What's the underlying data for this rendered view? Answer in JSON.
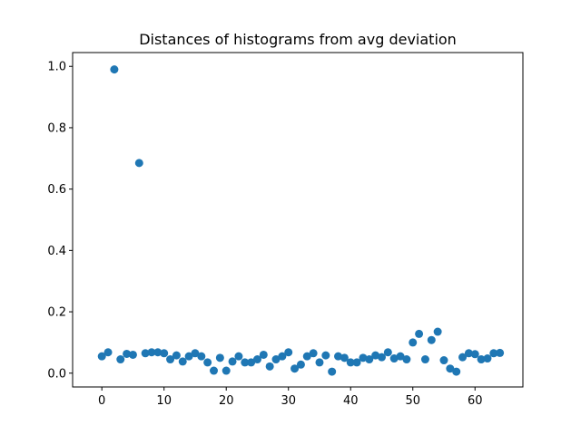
{
  "chart_data": {
    "type": "scatter",
    "title": "Distances of histograms from avg deviation",
    "xlabel": "",
    "ylabel": "",
    "xlim": [
      -4.7,
      67.7
    ],
    "ylim": [
      -0.045,
      1.045
    ],
    "xticks": [
      0,
      10,
      20,
      30,
      40,
      50,
      60
    ],
    "yticks": [
      0.0,
      0.2,
      0.4,
      0.6,
      0.8,
      1.0
    ],
    "grid": false,
    "legend": "none",
    "marker_color": "#1f77b4",
    "series": [
      {
        "x": [
          0,
          1,
          2,
          3,
          4,
          5,
          6,
          7,
          8,
          9,
          10,
          11,
          12,
          13,
          14,
          15,
          16,
          17,
          18,
          19,
          20,
          21,
          22,
          23,
          24,
          25,
          26,
          27,
          28,
          29,
          30,
          31,
          32,
          33,
          34,
          35,
          36,
          37,
          38,
          39,
          40,
          41,
          42,
          43,
          44,
          45,
          46,
          47,
          48,
          49,
          50,
          51,
          52,
          53,
          54,
          55,
          56,
          57,
          58,
          59,
          60,
          61,
          62,
          63,
          64
        ],
        "y": [
          0.055,
          0.068,
          0.99,
          0.045,
          0.063,
          0.06,
          0.685,
          0.065,
          0.068,
          0.068,
          0.065,
          0.045,
          0.058,
          0.038,
          0.055,
          0.065,
          0.055,
          0.035,
          0.008,
          0.05,
          0.008,
          0.038,
          0.055,
          0.035,
          0.035,
          0.045,
          0.06,
          0.022,
          0.045,
          0.055,
          0.068,
          0.015,
          0.028,
          0.055,
          0.065,
          0.035,
          0.058,
          0.005,
          0.055,
          0.05,
          0.035,
          0.035,
          0.05,
          0.045,
          0.058,
          0.052,
          0.068,
          0.048,
          0.055,
          0.045,
          0.1,
          0.128,
          0.045,
          0.108,
          0.135,
          0.042,
          0.015,
          0.005,
          0.052,
          0.065,
          0.062,
          0.045,
          0.048,
          0.065,
          0.066
        ]
      }
    ]
  }
}
